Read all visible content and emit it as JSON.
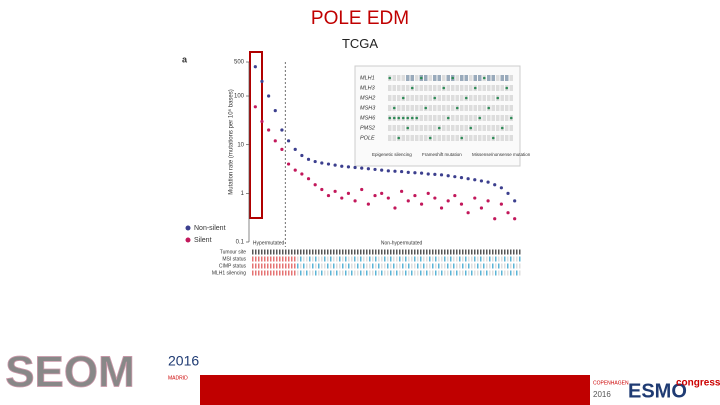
{
  "header": {
    "title": "POLE EDM",
    "subtitle": "TCGA"
  },
  "chart_data": {
    "type": "dot",
    "panel_label": "a",
    "y_label": "Mutation rate (mutations per 10⁶ bases)",
    "log_y": true,
    "ylim": [
      0.1,
      500
    ],
    "yticks": [
      0.1,
      1,
      10,
      100,
      500
    ],
    "legend": "lower left",
    "annotations": [
      "Hypermutated",
      "Non-hypermutated"
    ],
    "categories": [
      null,
      null,
      null,
      null,
      null,
      null,
      null,
      null,
      null,
      null,
      null,
      null,
      null,
      null,
      null,
      null,
      null,
      null,
      null,
      null,
      null,
      null,
      null,
      null,
      null,
      null,
      null,
      null,
      null,
      null,
      null,
      null,
      null,
      null,
      null,
      null,
      null,
      null,
      null,
      null
    ],
    "series": [
      {
        "name": "Non-silent",
        "color": "#3c3f8e",
        "values": [
          400,
          200,
          100,
          50,
          20,
          12,
          8,
          6,
          5,
          4.5,
          4.2,
          4,
          3.8,
          3.6,
          3.5,
          3.4,
          3.3,
          3.2,
          3.1,
          3.0,
          2.9,
          2.85,
          2.8,
          2.7,
          2.65,
          2.6,
          2.5,
          2.45,
          2.4,
          2.3,
          2.2,
          2.1,
          2.0,
          1.9,
          1.8,
          1.7,
          1.5,
          1.3,
          1.0,
          0.7
        ]
      },
      {
        "name": "Silent",
        "color": "#c2185b",
        "values": [
          60,
          30,
          20,
          12,
          8,
          4,
          3,
          2.5,
          2,
          1.5,
          1.2,
          0.9,
          1.1,
          0.8,
          1.0,
          0.7,
          1.2,
          0.6,
          0.9,
          1.0,
          0.8,
          0.5,
          1.1,
          0.7,
          0.9,
          0.6,
          1.0,
          0.8,
          0.5,
          0.7,
          0.9,
          0.6,
          0.4,
          0.8,
          0.5,
          0.7,
          0.3,
          0.6,
          0.4,
          0.3
        ]
      }
    ],
    "tracks": [
      "Tumour site",
      "MSI status",
      "CIMP status",
      "MLH1 silencing"
    ],
    "inset": {
      "genes": [
        "MLH1",
        "MLH3",
        "MSH2",
        "MSH3",
        "MSH6",
        "PMS2",
        "POLE"
      ],
      "legend": [
        "Epigenetic silencing",
        "Frameshift mutation",
        "Missense/nonsense mutation"
      ]
    }
  },
  "footer": {
    "logo": "SEOM",
    "year": "2016",
    "city": "MADRID",
    "esmo_city": "COPENHAGEN",
    "esmo_year": "2016",
    "esmo": "ESMO",
    "congress": "congress"
  }
}
